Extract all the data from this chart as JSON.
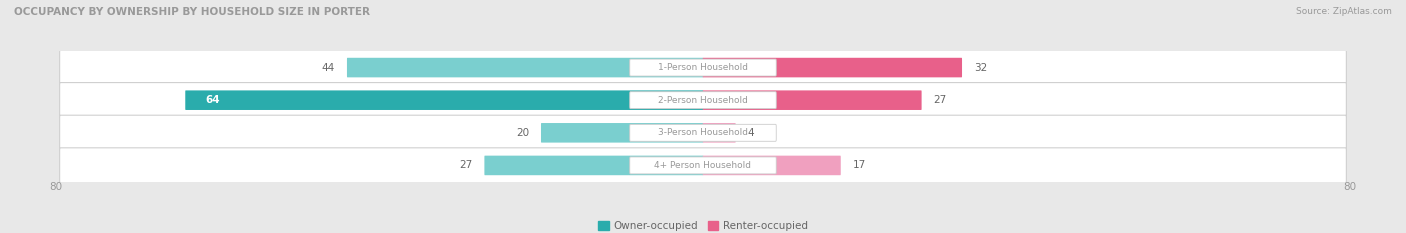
{
  "title": "OCCUPANCY BY OWNERSHIP BY HOUSEHOLD SIZE IN PORTER",
  "source": "Source: ZipAtlas.com",
  "categories": [
    "1-Person Household",
    "2-Person Household",
    "3-Person Household",
    "4+ Person Household"
  ],
  "owner_values": [
    44,
    64,
    20,
    27
  ],
  "renter_values": [
    32,
    27,
    4,
    17
  ],
  "owner_color_dark": "#2aacac",
  "owner_color_light": "#7acfcf",
  "renter_color_dark": "#e8608a",
  "renter_color_light": "#f0a0bf",
  "max_val": 80,
  "bg_color": "#e8e8e8",
  "row_bg": "#f5f5f5",
  "label_color": "#666666",
  "center_label_color": "#999999",
  "title_color": "#999999",
  "axis_label_color": "#999999",
  "legend_owner_color": "#2aacac",
  "legend_renter_color": "#e8608a",
  "owner_inside_threshold": 50
}
